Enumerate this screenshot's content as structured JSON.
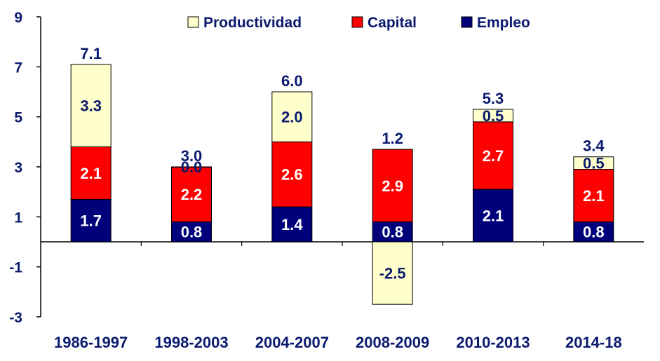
{
  "chart_data": {
    "type": "bar",
    "stacked": true,
    "categories": [
      "1986-1997",
      "1998-2003",
      "2004-2007",
      "2008-2009",
      "2010-2013",
      "2014-18"
    ],
    "series": [
      {
        "name": "Empleo",
        "color": "#00007a",
        "label_color": "#ffffff",
        "values": [
          1.7,
          0.8,
          1.4,
          0.8,
          2.1,
          0.8
        ]
      },
      {
        "name": "Capital",
        "color": "#ff0000",
        "label_color": "#ffffff",
        "values": [
          2.1,
          2.2,
          2.6,
          2.9,
          2.7,
          2.1
        ]
      },
      {
        "name": "Productividad",
        "color": "#ffffcc",
        "label_color": "#0a1a6e",
        "values": [
          3.3,
          0.0,
          2.0,
          -2.5,
          0.5,
          0.5
        ]
      }
    ],
    "segment_labels": [
      [
        "1.7",
        "0.8",
        "1.4",
        "0.8",
        "2.1",
        "0.8"
      ],
      [
        "2.1",
        "2.2",
        "2.6",
        "2.9",
        "2.7",
        "2.1"
      ],
      [
        "3.3",
        "0.0",
        "2.0",
        "-2.5",
        "0.5",
        "0.5"
      ]
    ],
    "totals": [
      7.1,
      3.0,
      6.0,
      1.2,
      5.3,
      3.4
    ],
    "total_labels": [
      "7.1",
      "3.0",
      "6.0",
      "1.2",
      "5.3",
      "3.4"
    ],
    "legend_order": [
      "Productividad",
      "Capital",
      "Empleo"
    ],
    "legend_position": "top",
    "yticks": [
      9,
      7,
      5,
      3,
      1,
      -1,
      -3
    ],
    "ylim": [
      -3,
      9
    ],
    "title": "",
    "xlabel": "",
    "ylabel": "",
    "grid": false
  }
}
